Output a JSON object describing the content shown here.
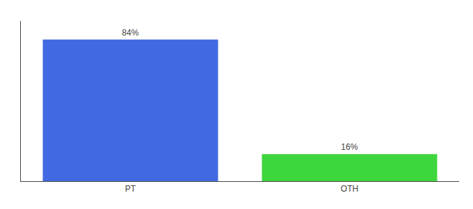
{
  "chart_data": {
    "type": "bar",
    "categories": [
      "PT",
      "OTH"
    ],
    "values": [
      84,
      16
    ],
    "value_labels": [
      "84%",
      "16%"
    ],
    "colors": [
      "#4169E1",
      "#3DD63D"
    ],
    "ylim": [
      0,
      95
    ],
    "yticks": [],
    "data_labels": true,
    "tick_labels": "x",
    "grid": false
  }
}
